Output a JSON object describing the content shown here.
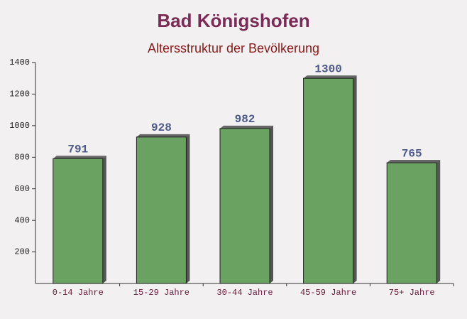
{
  "chart_data": {
    "type": "bar",
    "title": "Bad Königshofen",
    "subtitle": "Altersstruktur der Bevölkerung",
    "categories": [
      "0-14 Jahre",
      "15-29 Jahre",
      "30-44 Jahre",
      "45-59 Jahre",
      "75+ Jahre"
    ],
    "values": [
      791,
      928,
      982,
      1300,
      765
    ],
    "color": "#6aa262",
    "ylim": [
      0,
      1400
    ],
    "yticks": [
      200,
      400,
      600,
      800,
      1000,
      1200,
      1400
    ],
    "grid": false
  }
}
